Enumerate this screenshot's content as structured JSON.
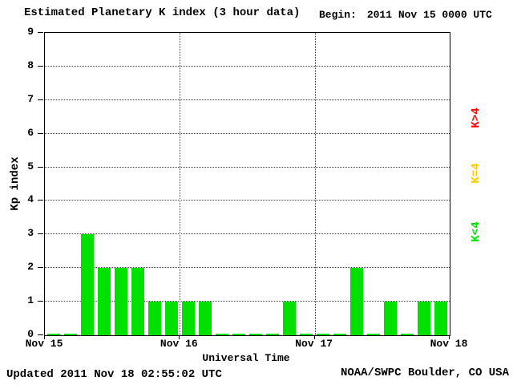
{
  "chart_data": {
    "type": "bar",
    "title": "Estimated Planetary K index (3 hour data)",
    "begin_label": "Begin:",
    "begin_value": "2011 Nov 15 0000 UTC",
    "xlabel": "Universal Time",
    "ylabel": "Kp index",
    "ylim": [
      0,
      9
    ],
    "yticks": [
      0,
      1,
      2,
      3,
      4,
      5,
      6,
      7,
      8,
      9
    ],
    "x_tick_labels": [
      "Nov 15",
      "Nov 16",
      "Nov 17",
      "Nov 18"
    ],
    "interval_hours": 3,
    "bars_per_day": 8,
    "values": [
      0,
      0,
      3,
      2,
      2,
      2,
      1,
      1,
      1,
      1,
      0,
      0,
      0,
      0,
      1,
      0,
      0,
      0,
      2,
      0,
      1,
      0,
      1,
      1
    ],
    "bar_color": "#00e100",
    "grid": "dotted",
    "legend_position": "right",
    "legend": [
      {
        "label": "K>4",
        "color": "#ff0000"
      },
      {
        "label": "K=4",
        "color": "#ffc800"
      },
      {
        "label": "K<4",
        "color": "#00e100"
      }
    ],
    "footer": {
      "updated": "Updated 2011 Nov 18 02:55:02 UTC",
      "source": "NOAA/SWPC Boulder, CO USA"
    }
  }
}
